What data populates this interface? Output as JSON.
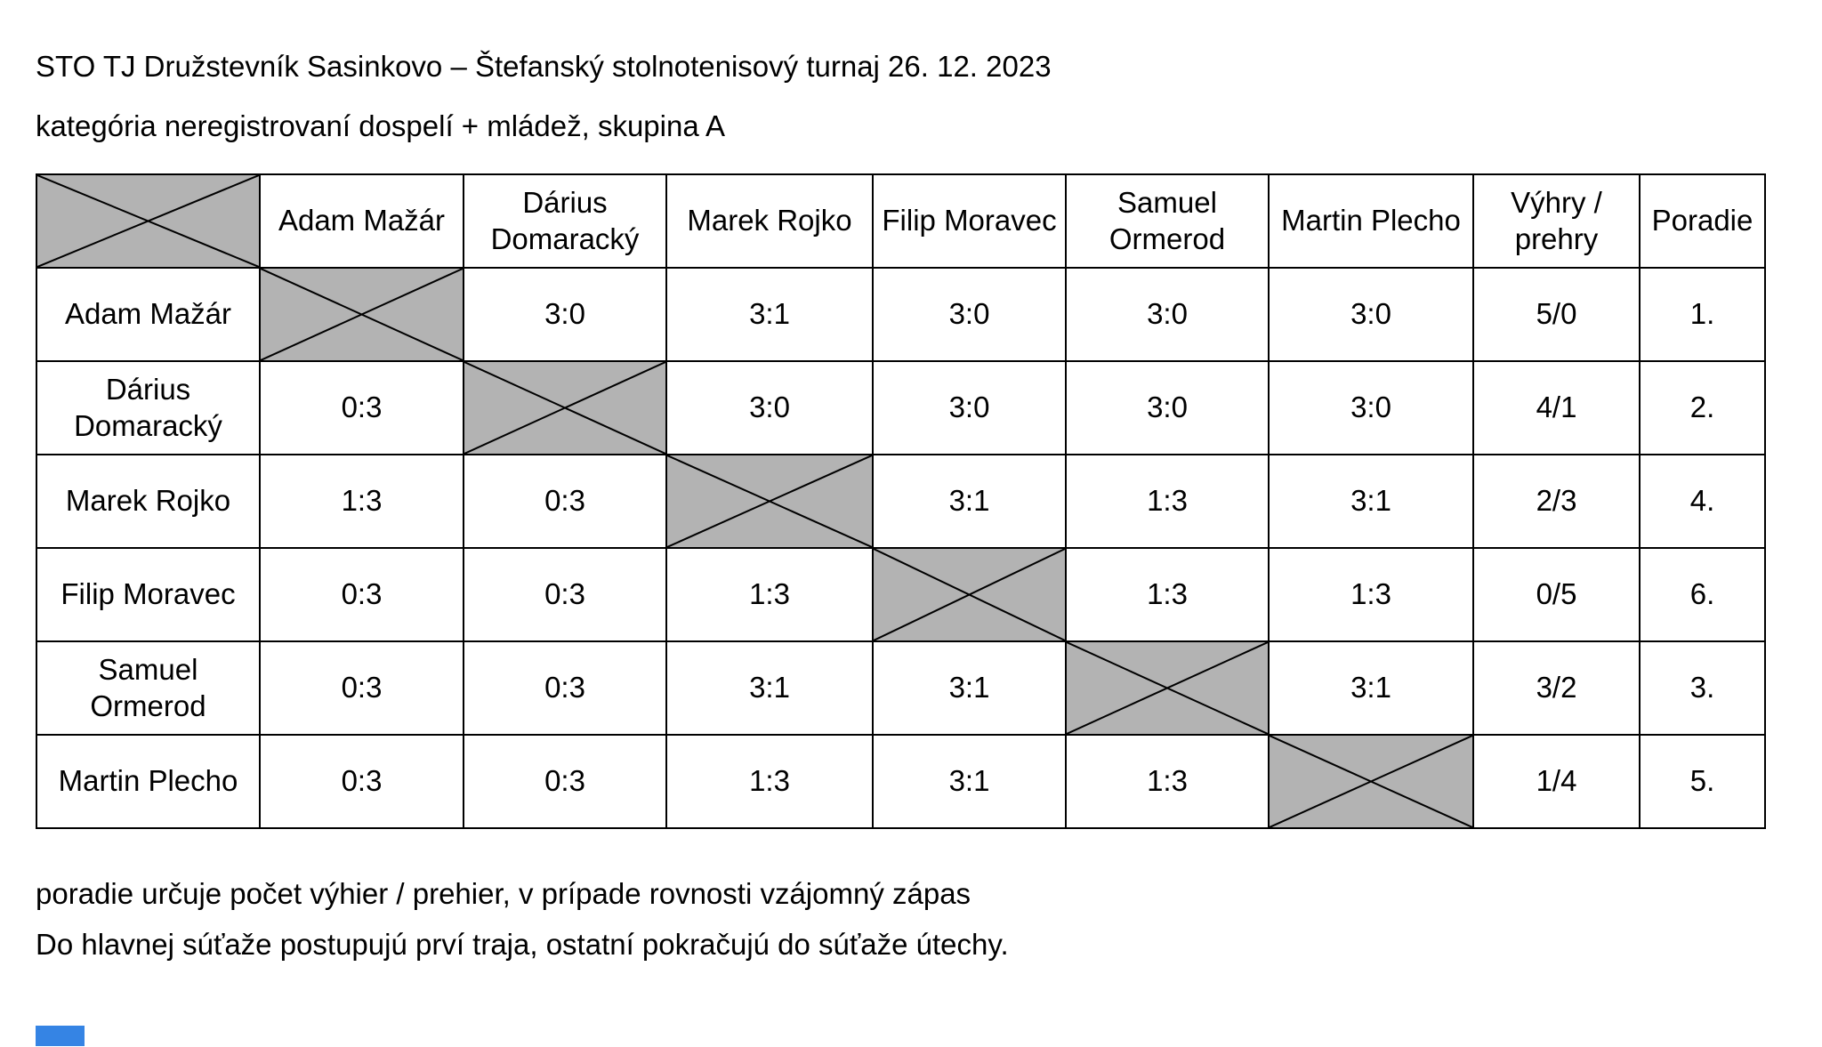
{
  "document": {
    "title": "STO TJ Družstevník Sasinkovo – Štefanský stolnotenisový turnaj 26. 12. 2023",
    "subtitle": "kategória neregistrovaní dospelí + mládež, skupina A",
    "notes": [
      "poradie určuje počet výhier / prehier, v prípade rovnosti vzájomný zápas",
      "Do hlavnej súťaže postupujú prví traja, ostatní pokračujú do súťaže útechy."
    ]
  },
  "table": {
    "column_headers": [
      "X",
      "Adam Mažár",
      "Dárius Domaracký",
      "Marek Rojko",
      "Filip Moravec",
      "Samuel Ormerod",
      "Martin Plecho",
      "Výhry / prehry",
      "Poradie"
    ],
    "rows": [
      {
        "player": "Adam Mažár",
        "results": [
          "X",
          "3:0",
          "3:1",
          "3:0",
          "3:0",
          "3:0"
        ],
        "wins_losses": "5/0",
        "rank": "1.",
        "rank_bold": true
      },
      {
        "player": "Dárius Domaracký",
        "results": [
          "0:3",
          "X",
          "3:0",
          "3:0",
          "3:0",
          "3:0"
        ],
        "wins_losses": "4/1",
        "rank": "2.",
        "rank_bold": true
      },
      {
        "player": "Marek Rojko",
        "results": [
          "1:3",
          "0:3",
          "X",
          "3:1",
          "1:3",
          "3:1"
        ],
        "wins_losses": "2/3",
        "rank": "4.",
        "rank_bold": false
      },
      {
        "player": "Filip Moravec",
        "results": [
          "0:3",
          "0:3",
          "1:3",
          "X",
          "1:3",
          "1:3"
        ],
        "wins_losses": "0/5",
        "rank": "6.",
        "rank_bold": false
      },
      {
        "player": "Samuel Ormerod",
        "results": [
          "0:3",
          "0:3",
          "3:1",
          "3:1",
          "X",
          "3:1"
        ],
        "wins_losses": "3/2",
        "rank": "3.",
        "rank_bold": true
      },
      {
        "player": "Martin Plecho",
        "results": [
          "0:3",
          "0:3",
          "1:3",
          "3:1",
          "1:3",
          "X"
        ],
        "wins_losses": "1/4",
        "rank": "5.",
        "rank_bold": false
      }
    ]
  },
  "colors": {
    "diagonal_cell_fill": "#b3b3b3",
    "border": "#000000",
    "text": "#000000",
    "background": "#ffffff",
    "bottom_marker_blue": "#3584e4"
  }
}
